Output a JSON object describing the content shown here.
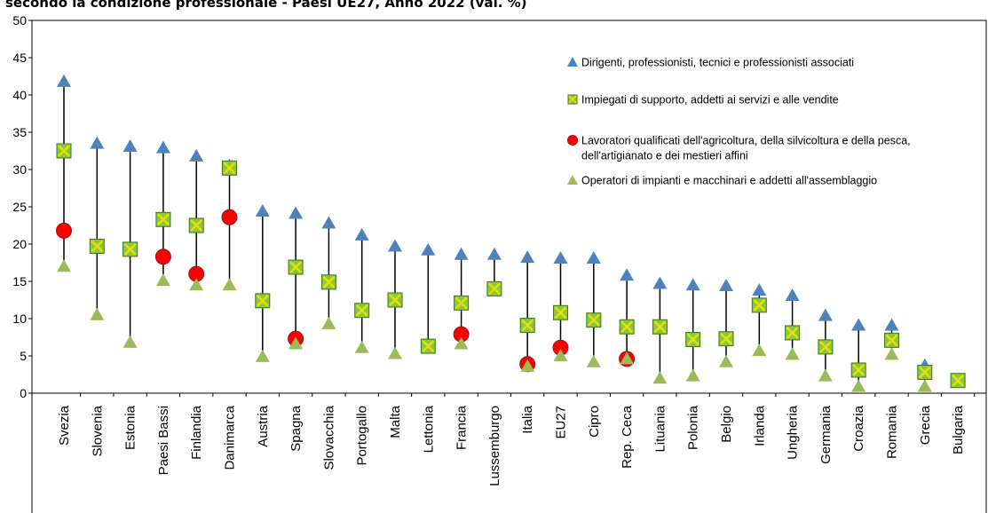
{
  "title": "secondo la condizione professionale - Paesi UE27, Anno 2022 (val. %)",
  "chart_data": {
    "type": "scatter",
    "title": "secondo la condizione professionale - Paesi UE27, Anno 2022 (val. %)",
    "ylim": [
      0,
      50
    ],
    "yticks": [
      0,
      5,
      10,
      15,
      20,
      25,
      30,
      35,
      40,
      45,
      50
    ],
    "grid": false,
    "legend_position": "top-right",
    "categories": [
      "Svezia",
      "Slovenia",
      "Estonia",
      "Paesi Bassi",
      "Finlandia",
      "Danimarca",
      "Austria",
      "Spagna",
      "Slovacchia",
      "Portogallo",
      "Malta",
      "Lettonia",
      "Francia",
      "Lussemburgo",
      "Italia",
      "EU27",
      "Cipro",
      "Rep. Ceca",
      "Lituania",
      "Polonia",
      "Belgio",
      "Irlanda",
      "Ungheria",
      "Germania",
      "Croazia",
      "Romania",
      "Grecia",
      "Bulgaria"
    ],
    "series": [
      {
        "name": "Dirigenti, professionisti, tecnici e professionisti associati",
        "marker": "triangle",
        "color": "#4F81BD",
        "values": [
          41.8,
          33.5,
          33.1,
          32.9,
          31.8,
          30.5,
          24.4,
          24.1,
          22.8,
          21.2,
          19.7,
          19.2,
          18.6,
          18.6,
          18.2,
          18.1,
          18.1,
          15.8,
          14.7,
          14.5,
          14.4,
          13.8,
          13.1,
          10.4,
          9.1,
          9.1,
          3.7,
          1.5
        ]
      },
      {
        "name": "Impiegati di supporto, addetti ai servizi e alle vendite",
        "marker": "square-x",
        "color": "#8DC63F",
        "values": [
          32.5,
          19.7,
          19.3,
          23.3,
          22.5,
          30.2,
          12.4,
          16.9,
          14.9,
          11.1,
          12.5,
          6.3,
          12.1,
          14.0,
          9.1,
          10.8,
          9.8,
          8.9,
          8.9,
          7.2,
          7.3,
          11.8,
          8.1,
          6.2,
          3.1,
          7.1,
          2.8,
          1.7
        ]
      },
      {
        "name": "Lavoratori qualificati dell'agricoltura, della silvicoltura e della pesca, dell'artigianato e dei mestieri affini",
        "marker": "circle",
        "color": "#FF0000",
        "values": [
          21.8,
          null,
          null,
          18.3,
          16.0,
          23.6,
          null,
          7.3,
          null,
          null,
          null,
          null,
          7.9,
          null,
          3.9,
          6.1,
          null,
          4.6,
          null,
          null,
          null,
          null,
          null,
          null,
          null,
          null,
          null,
          null
        ]
      },
      {
        "name": "Operatori di impianti e macchinari e addetti all'assemblaggio",
        "marker": "triangle",
        "color": "#9BBB59",
        "values": [
          17.0,
          10.5,
          6.8,
          15.1,
          14.5,
          14.5,
          4.9,
          6.6,
          9.3,
          6.1,
          5.3,
          6.3,
          6.6,
          14.0,
          3.6,
          5.0,
          4.2,
          4.6,
          2.0,
          2.3,
          4.2,
          5.7,
          5.2,
          2.3,
          0.9,
          5.2,
          0.9,
          1.6
        ]
      }
    ]
  }
}
